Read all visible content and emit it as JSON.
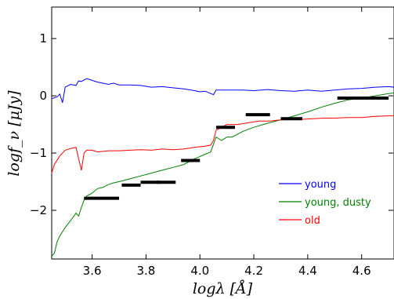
{
  "chart_data": {
    "type": "line",
    "title": "",
    "xlabel": "logλ [Å]",
    "ylabel": "logf_ν [μJy]",
    "xlim": [
      3.45,
      4.72
    ],
    "ylim": [
      -2.85,
      1.55
    ],
    "xticks": [
      3.6,
      3.8,
      4.0,
      4.2,
      4.4,
      4.6
    ],
    "xtick_labels": [
      "3.6",
      "3.8",
      "4.0",
      "4.2",
      "4.4",
      "4.6"
    ],
    "yticks": [
      -2,
      -1,
      0,
      1
    ],
    "ytick_labels": [
      "−2",
      "−1",
      "0",
      "1"
    ],
    "grid": false,
    "legend_position": "lower-right",
    "series": [
      {
        "name": "young",
        "color": "#0000ff",
        "points": [
          [
            3.45,
            -0.05
          ],
          [
            3.47,
            -0.02
          ],
          [
            3.48,
            0.03
          ],
          [
            3.49,
            -0.12
          ],
          [
            3.5,
            0.15
          ],
          [
            3.52,
            0.2
          ],
          [
            3.54,
            0.18
          ],
          [
            3.55,
            0.26
          ],
          [
            3.56,
            0.25
          ],
          [
            3.58,
            0.3
          ],
          [
            3.6,
            0.27
          ],
          [
            3.62,
            0.24
          ],
          [
            3.64,
            0.22
          ],
          [
            3.66,
            0.2
          ],
          [
            3.68,
            0.22
          ],
          [
            3.7,
            0.19
          ],
          [
            3.74,
            0.19
          ],
          [
            3.78,
            0.18
          ],
          [
            3.82,
            0.15
          ],
          [
            3.86,
            0.16
          ],
          [
            3.9,
            0.14
          ],
          [
            3.94,
            0.12
          ],
          [
            3.98,
            0.09
          ],
          [
            4.0,
            0.07
          ],
          [
            4.02,
            0.08
          ],
          [
            4.04,
            0.04
          ],
          [
            4.05,
            0.02
          ],
          [
            4.06,
            0.1
          ],
          [
            4.08,
            0.1
          ],
          [
            4.12,
            0.1
          ],
          [
            4.16,
            0.1
          ],
          [
            4.2,
            0.09
          ],
          [
            4.25,
            0.11
          ],
          [
            4.3,
            0.09
          ],
          [
            4.35,
            0.08
          ],
          [
            4.4,
            0.1
          ],
          [
            4.45,
            0.08
          ],
          [
            4.5,
            0.1
          ],
          [
            4.55,
            0.12
          ],
          [
            4.6,
            0.13
          ],
          [
            4.65,
            0.15
          ],
          [
            4.7,
            0.16
          ],
          [
            4.72,
            0.15
          ]
        ]
      },
      {
        "name": "young, dusty",
        "color": "#008000",
        "points": [
          [
            3.45,
            -2.8
          ],
          [
            3.46,
            -2.75
          ],
          [
            3.47,
            -2.55
          ],
          [
            3.48,
            -2.45
          ],
          [
            3.5,
            -2.3
          ],
          [
            3.52,
            -2.18
          ],
          [
            3.54,
            -2.05
          ],
          [
            3.55,
            -2.1
          ],
          [
            3.56,
            -1.95
          ],
          [
            3.57,
            -1.82
          ],
          [
            3.58,
            -1.75
          ],
          [
            3.6,
            -1.7
          ],
          [
            3.62,
            -1.62
          ],
          [
            3.64,
            -1.6
          ],
          [
            3.66,
            -1.55
          ],
          [
            3.68,
            -1.52
          ],
          [
            3.7,
            -1.5
          ],
          [
            3.74,
            -1.45
          ],
          [
            3.78,
            -1.4
          ],
          [
            3.82,
            -1.35
          ],
          [
            3.86,
            -1.3
          ],
          [
            3.9,
            -1.25
          ],
          [
            3.94,
            -1.2
          ],
          [
            3.98,
            -1.1
          ],
          [
            4.02,
            -1.02
          ],
          [
            4.04,
            -0.98
          ],
          [
            4.06,
            -0.72
          ],
          [
            4.08,
            -0.78
          ],
          [
            4.1,
            -0.72
          ],
          [
            4.12,
            -0.72
          ],
          [
            4.16,
            -0.62
          ],
          [
            4.2,
            -0.55
          ],
          [
            4.25,
            -0.48
          ],
          [
            4.3,
            -0.42
          ],
          [
            4.35,
            -0.35
          ],
          [
            4.4,
            -0.28
          ],
          [
            4.45,
            -0.2
          ],
          [
            4.5,
            -0.13
          ],
          [
            4.55,
            -0.07
          ],
          [
            4.6,
            -0.04
          ],
          [
            4.65,
            0.0
          ],
          [
            4.7,
            0.04
          ],
          [
            4.72,
            0.05
          ]
        ]
      },
      {
        "name": "old",
        "color": "#ff0000",
        "points": [
          [
            3.45,
            -1.35
          ],
          [
            3.46,
            -1.2
          ],
          [
            3.48,
            -1.05
          ],
          [
            3.5,
            -0.95
          ],
          [
            3.52,
            -0.92
          ],
          [
            3.54,
            -0.9
          ],
          [
            3.55,
            -1.1
          ],
          [
            3.56,
            -1.3
          ],
          [
            3.57,
            -1.0
          ],
          [
            3.58,
            -0.95
          ],
          [
            3.6,
            -0.95
          ],
          [
            3.62,
            -0.98
          ],
          [
            3.66,
            -0.96
          ],
          [
            3.7,
            -0.96
          ],
          [
            3.74,
            -0.95
          ],
          [
            3.78,
            -0.94
          ],
          [
            3.82,
            -0.95
          ],
          [
            3.86,
            -0.93
          ],
          [
            3.9,
            -0.94
          ],
          [
            3.94,
            -0.93
          ],
          [
            3.98,
            -0.9
          ],
          [
            4.02,
            -0.88
          ],
          [
            4.04,
            -0.86
          ],
          [
            4.05,
            -0.78
          ],
          [
            4.06,
            -0.6
          ],
          [
            4.08,
            -0.55
          ],
          [
            4.1,
            -0.5
          ],
          [
            4.14,
            -0.5
          ],
          [
            4.18,
            -0.47
          ],
          [
            4.22,
            -0.44
          ],
          [
            4.26,
            -0.44
          ],
          [
            4.3,
            -0.42
          ],
          [
            4.34,
            -0.41
          ],
          [
            4.38,
            -0.41
          ],
          [
            4.42,
            -0.4
          ],
          [
            4.46,
            -0.39
          ],
          [
            4.5,
            -0.39
          ],
          [
            4.55,
            -0.38
          ],
          [
            4.6,
            -0.38
          ],
          [
            4.65,
            -0.36
          ],
          [
            4.7,
            -0.35
          ],
          [
            4.72,
            -0.35
          ]
        ]
      }
    ],
    "segments": [
      {
        "x": [
          3.57,
          3.7
        ],
        "y": -1.79
      },
      {
        "x": [
          3.71,
          3.78
        ],
        "y": -1.56
      },
      {
        "x": [
          3.78,
          3.85
        ],
        "y": -1.51
      },
      {
        "x": [
          3.84,
          3.91
        ],
        "y": -1.51
      },
      {
        "x": [
          3.93,
          4.0
        ],
        "y": -1.13
      },
      {
        "x": [
          4.06,
          4.13
        ],
        "y": -0.55
      },
      {
        "x": [
          4.17,
          4.26
        ],
        "y": -0.33
      },
      {
        "x": [
          4.3,
          4.38
        ],
        "y": -0.4
      },
      {
        "x": [
          4.51,
          4.61
        ],
        "y": -0.04
      },
      {
        "x": [
          4.61,
          4.7
        ],
        "y": -0.04
      }
    ],
    "legend": [
      {
        "label": "young",
        "color": "#0000ff"
      },
      {
        "label": "young, dusty",
        "color": "#008000"
      },
      {
        "label": "old",
        "color": "#ff0000"
      }
    ]
  }
}
